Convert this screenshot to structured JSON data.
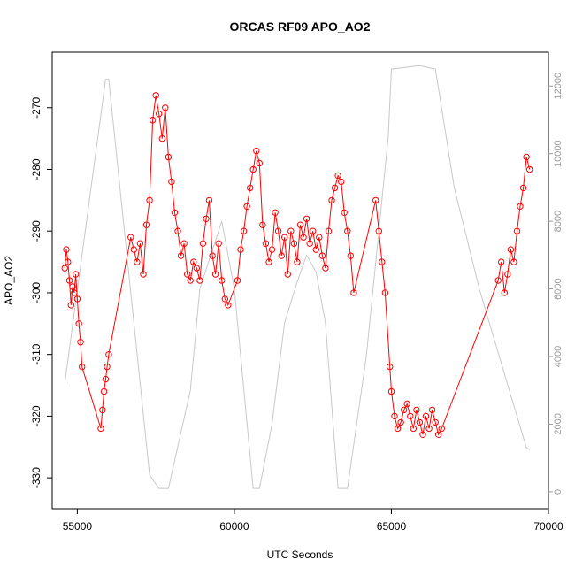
{
  "chart_data": {
    "type": "scatter",
    "title": "ORCAS RF09 APO_AO2",
    "xlabel": "UTC Seconds",
    "ylabel": "APO_AO2",
    "xlim": [
      54200,
      70000
    ],
    "ylim": [
      -335,
      -261
    ],
    "y2lim": [
      -500,
      13000
    ],
    "x_ticks": [
      55000,
      60000,
      65000,
      70000
    ],
    "y_ticks": [
      -330,
      -320,
      -310,
      -300,
      -290,
      -280,
      -270
    ],
    "y2_ticks": [
      0,
      2000,
      4000,
      6000,
      8000,
      10000,
      12000
    ],
    "grid": false,
    "colors": {
      "series": "#ff0000",
      "secondary": "#c8c8c8"
    },
    "series": [
      {
        "style": "line+points",
        "color": "#ff0000",
        "points": [
          [
            54600,
            -296
          ],
          [
            54650,
            -293
          ],
          [
            54700,
            -295
          ],
          [
            54750,
            -298
          ],
          [
            54800,
            -302
          ],
          [
            54850,
            -299
          ],
          [
            54900,
            -300
          ],
          [
            54950,
            -297
          ],
          [
            55000,
            -301
          ],
          [
            55050,
            -305
          ],
          [
            55100,
            -308
          ],
          [
            55150,
            -312
          ],
          [
            55750,
            -322
          ],
          [
            55800,
            -319
          ],
          [
            55850,
            -316
          ],
          [
            55900,
            -314
          ],
          [
            55950,
            -312
          ],
          [
            56000,
            -310
          ],
          [
            56700,
            -291
          ],
          [
            56800,
            -293
          ],
          [
            56900,
            -295
          ],
          [
            57000,
            -292
          ],
          [
            57100,
            -297
          ],
          [
            57200,
            -289
          ],
          [
            57300,
            -285
          ],
          [
            57400,
            -272
          ],
          [
            57500,
            -268
          ],
          [
            57600,
            -271
          ],
          [
            57700,
            -275
          ],
          [
            57800,
            -270
          ],
          [
            57900,
            -278
          ],
          [
            58000,
            -282
          ],
          [
            58100,
            -287
          ],
          [
            58200,
            -290
          ],
          [
            58300,
            -294
          ],
          [
            58400,
            -292
          ],
          [
            58500,
            -297
          ],
          [
            58600,
            -298
          ],
          [
            58700,
            -295
          ],
          [
            58800,
            -296
          ],
          [
            58900,
            -298
          ],
          [
            59000,
            -292
          ],
          [
            59100,
            -288
          ],
          [
            59200,
            -285
          ],
          [
            59300,
            -294
          ],
          [
            59400,
            -297
          ],
          [
            59500,
            -292
          ],
          [
            59600,
            -298
          ],
          [
            59700,
            -301
          ],
          [
            59800,
            -302
          ],
          [
            60100,
            -298
          ],
          [
            60200,
            -293
          ],
          [
            60300,
            -290
          ],
          [
            60400,
            -286
          ],
          [
            60500,
            -283
          ],
          [
            60600,
            -280
          ],
          [
            60700,
            -277
          ],
          [
            60800,
            -279
          ],
          [
            60900,
            -289
          ],
          [
            61000,
            -292
          ],
          [
            61100,
            -295
          ],
          [
            61200,
            -293
          ],
          [
            61300,
            -287
          ],
          [
            61400,
            -290
          ],
          [
            61500,
            -294
          ],
          [
            61600,
            -291
          ],
          [
            61700,
            -297
          ],
          [
            61800,
            -290
          ],
          [
            61900,
            -292
          ],
          [
            62000,
            -295
          ],
          [
            62100,
            -289
          ],
          [
            62200,
            -291
          ],
          [
            62300,
            -288
          ],
          [
            62400,
            -292
          ],
          [
            62500,
            -290
          ],
          [
            62600,
            -293
          ],
          [
            62700,
            -291
          ],
          [
            62800,
            -294
          ],
          [
            62900,
            -296
          ],
          [
            63000,
            -290
          ],
          [
            63100,
            -285
          ],
          [
            63200,
            -283
          ],
          [
            63300,
            -281
          ],
          [
            63400,
            -282
          ],
          [
            63500,
            -287
          ],
          [
            63600,
            -290
          ],
          [
            63700,
            -294
          ],
          [
            63800,
            -300
          ],
          [
            64500,
            -285
          ],
          [
            64600,
            -290
          ],
          [
            64700,
            -295
          ],
          [
            64800,
            -300
          ],
          [
            64950,
            -312
          ],
          [
            65000,
            -316
          ],
          [
            65100,
            -320
          ],
          [
            65200,
            -322
          ],
          [
            65300,
            -321
          ],
          [
            65400,
            -319
          ],
          [
            65500,
            -318
          ],
          [
            65600,
            -320
          ],
          [
            65700,
            -322
          ],
          [
            65800,
            -319
          ],
          [
            65900,
            -321
          ],
          [
            66000,
            -323
          ],
          [
            66100,
            -320
          ],
          [
            66200,
            -322
          ],
          [
            66300,
            -319
          ],
          [
            66400,
            -321
          ],
          [
            66500,
            -323
          ],
          [
            66600,
            -322
          ],
          [
            68400,
            -298
          ],
          [
            68500,
            -295
          ],
          [
            68600,
            -300
          ],
          [
            68700,
            -297
          ],
          [
            68800,
            -293
          ],
          [
            68900,
            -295
          ],
          [
            69000,
            -290
          ],
          [
            69100,
            -286
          ],
          [
            69200,
            -283
          ],
          [
            69300,
            -278
          ],
          [
            69400,
            -280
          ]
        ]
      }
    ],
    "secondary_series": [
      {
        "color": "#c8c8c8",
        "axis": "right",
        "points": [
          [
            54600,
            3200
          ],
          [
            55900,
            12200
          ],
          [
            56000,
            12200
          ],
          [
            57300,
            500
          ],
          [
            57600,
            100
          ],
          [
            57900,
            100
          ],
          [
            58600,
            3000
          ],
          [
            58900,
            6000
          ],
          [
            59600,
            8000
          ],
          [
            60000,
            6000
          ],
          [
            60600,
            100
          ],
          [
            60800,
            100
          ],
          [
            61200,
            2000
          ],
          [
            61600,
            5000
          ],
          [
            62000,
            6200
          ],
          [
            62300,
            7000
          ],
          [
            62600,
            6500
          ],
          [
            62900,
            5000
          ],
          [
            63300,
            100
          ],
          [
            63600,
            100
          ],
          [
            64200,
            4000
          ],
          [
            64900,
            10500
          ],
          [
            65000,
            12500
          ],
          [
            65900,
            12600
          ],
          [
            66400,
            12500
          ],
          [
            67000,
            9000
          ],
          [
            67800,
            6000
          ],
          [
            68500,
            3800
          ],
          [
            69300,
            1300
          ],
          [
            69400,
            1250
          ]
        ]
      }
    ]
  }
}
